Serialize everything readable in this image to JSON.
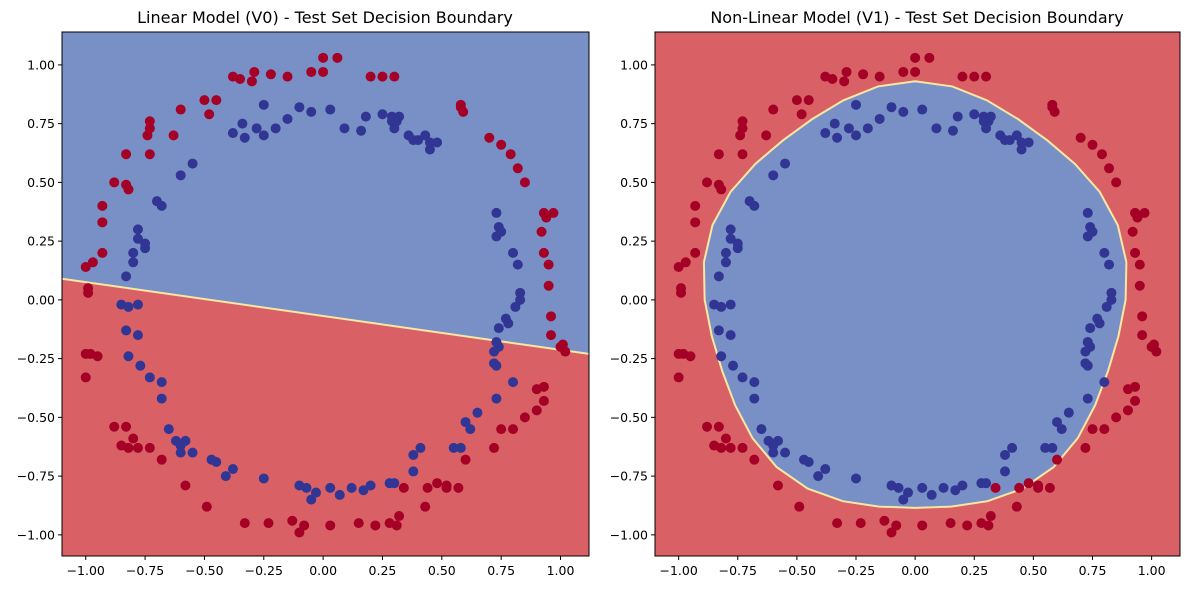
{
  "chart_data": [
    {
      "type": "scatter",
      "title": "Linear Model (V0) - Test Set Decision Boundary",
      "xlabel": "",
      "ylabel": "",
      "xlim": [
        -1.1,
        1.12
      ],
      "ylim": [
        -1.09,
        1.14
      ],
      "xticks": [
        -1.0,
        -0.75,
        -0.5,
        -0.25,
        0.0,
        0.25,
        0.5,
        0.75,
        1.0
      ],
      "xtick_labels": [
        "−1.00",
        "−0.75",
        "−0.50",
        "−0.25",
        "0.00",
        "0.25",
        "0.50",
        "0.75",
        "1.00"
      ],
      "yticks": [
        -1.0,
        -0.75,
        -0.5,
        -0.25,
        0.0,
        0.25,
        0.5,
        0.75,
        1.0
      ],
      "ytick_labels": [
        "−1.00",
        "−0.75",
        "−0.50",
        "−0.25",
        "0.00",
        "0.25",
        "0.50",
        "0.75",
        "1.00"
      ],
      "boundary": {
        "kind": "linear",
        "line": [
          [
            -1.1,
            0.09
          ],
          [
            1.12,
            -0.23
          ]
        ]
      },
      "region_colors": {
        "class_0": "#d96165",
        "class_1": "#7890c5",
        "edge": "#f7e7a3"
      },
      "point_colors": {
        "class_0": "#a50026",
        "class_1": "#313695"
      },
      "grid": false,
      "legend": "none"
    },
    {
      "type": "scatter",
      "title": "Non-Linear Model (V1) - Test Set Decision Boundary",
      "xlabel": "",
      "ylabel": "",
      "xlim": [
        -1.1,
        1.12
      ],
      "ylim": [
        -1.09,
        1.14
      ],
      "xticks": [
        -1.0,
        -0.75,
        -0.5,
        -0.25,
        0.0,
        0.25,
        0.5,
        0.75,
        1.0
      ],
      "xtick_labels": [
        "−1.00",
        "−0.75",
        "−0.50",
        "−0.25",
        "0.00",
        "0.25",
        "0.50",
        "0.75",
        "1.00"
      ],
      "yticks": [
        -1.0,
        -0.75,
        -0.5,
        -0.25,
        0.0,
        0.25,
        0.5,
        0.75,
        1.0
      ],
      "ytick_labels": [
        "−1.00",
        "−0.75",
        "−0.50",
        "−0.25",
        "0.00",
        "0.25",
        "0.50",
        "0.75",
        "1.00"
      ],
      "boundary": {
        "kind": "circle",
        "center": [
          0.0,
          0.0
        ],
        "radius": 0.89
      },
      "region_colors": {
        "class_0": "#d96165",
        "class_1": "#7890c5",
        "edge": "#f7e7a3"
      },
      "point_colors": {
        "class_0": "#a50026",
        "class_1": "#313695"
      },
      "grid": false,
      "legend": "none"
    }
  ],
  "points": {
    "red": [
      [
        0.0,
        1.03
      ],
      [
        0.06,
        1.03
      ],
      [
        -0.05,
        0.97
      ],
      [
        0.0,
        0.97
      ],
      [
        -0.29,
        0.97
      ],
      [
        -0.22,
        0.96
      ],
      [
        -0.35,
        0.94
      ],
      [
        -0.38,
        0.95
      ],
      [
        -0.3,
        0.93
      ],
      [
        -0.15,
        0.95
      ],
      [
        0.2,
        0.95
      ],
      [
        0.25,
        0.95
      ],
      [
        0.3,
        0.95
      ],
      [
        -0.45,
        0.85
      ],
      [
        -0.5,
        0.85
      ],
      [
        -0.6,
        0.81
      ],
      [
        -0.73,
        0.76
      ],
      [
        -0.73,
        0.73
      ],
      [
        -0.48,
        0.79
      ],
      [
        -0.63,
        0.7
      ],
      [
        0.58,
        0.83
      ],
      [
        0.58,
        0.82
      ],
      [
        0.59,
        0.8
      ],
      [
        0.7,
        0.69
      ],
      [
        0.75,
        0.66
      ],
      [
        -0.83,
        0.62
      ],
      [
        -0.73,
        0.62
      ],
      [
        -0.74,
        0.7
      ],
      [
        -0.88,
        0.5
      ],
      [
        -0.83,
        0.49
      ],
      [
        -0.82,
        0.47
      ],
      [
        0.79,
        0.62
      ],
      [
        0.82,
        0.56
      ],
      [
        0.85,
        0.5
      ],
      [
        -0.93,
        0.4
      ],
      [
        -0.93,
        0.33
      ],
      [
        -0.93,
        0.2
      ],
      [
        -1.0,
        0.14
      ],
      [
        -0.97,
        0.16
      ],
      [
        0.93,
        0.37
      ],
      [
        0.97,
        0.37
      ],
      [
        0.94,
        0.35
      ],
      [
        0.92,
        0.29
      ],
      [
        0.93,
        0.2
      ],
      [
        0.95,
        0.15
      ],
      [
        0.95,
        0.06
      ],
      [
        -0.99,
        0.05
      ],
      [
        -0.99,
        0.03
      ],
      [
        -1.0,
        -0.23
      ],
      [
        -1.0,
        -0.33
      ],
      [
        -0.98,
        -0.23
      ],
      [
        -0.95,
        -0.24
      ],
      [
        0.96,
        -0.07
      ],
      [
        0.96,
        -0.15
      ],
      [
        1.0,
        -0.2
      ],
      [
        1.02,
        -0.22
      ],
      [
        1.01,
        -0.19
      ],
      [
        0.93,
        -0.37
      ],
      [
        0.9,
        -0.38
      ],
      [
        0.93,
        -0.43
      ],
      [
        0.9,
        -0.47
      ],
      [
        0.85,
        -0.5
      ],
      [
        0.8,
        -0.55
      ],
      [
        0.75,
        -0.55
      ],
      [
        0.72,
        -0.63
      ],
      [
        0.6,
        -0.68
      ],
      [
        0.57,
        -0.8
      ],
      [
        0.52,
        -0.79
      ],
      [
        -0.88,
        -0.54
      ],
      [
        -0.83,
        -0.54
      ],
      [
        -0.8,
        -0.59
      ],
      [
        -0.82,
        -0.63
      ],
      [
        -0.85,
        -0.62
      ],
      [
        -0.78,
        -0.63
      ],
      [
        -0.73,
        -0.63
      ],
      [
        -0.68,
        -0.68
      ],
      [
        -0.58,
        -0.79
      ],
      [
        -0.49,
        -0.88
      ],
      [
        -0.33,
        -0.95
      ],
      [
        -0.23,
        -0.95
      ],
      [
        -0.13,
        -0.94
      ],
      [
        -0.1,
        -0.99
      ],
      [
        -0.08,
        -0.96
      ],
      [
        0.03,
        -0.96
      ],
      [
        0.15,
        -0.95
      ],
      [
        0.22,
        -0.96
      ],
      [
        0.28,
        -0.95
      ],
      [
        0.31,
        -0.96
      ],
      [
        0.32,
        -0.92
      ],
      [
        0.43,
        -0.88
      ],
      [
        0.34,
        -0.8
      ],
      [
        0.48,
        -0.78
      ],
      [
        0.52,
        -0.8
      ],
      [
        0.44,
        -0.8
      ]
    ],
    "blue": [
      [
        -0.1,
        0.82
      ],
      [
        -0.05,
        0.8
      ],
      [
        0.03,
        0.81
      ],
      [
        0.09,
        0.73
      ],
      [
        0.16,
        0.72
      ],
      [
        0.18,
        0.78
      ],
      [
        0.25,
        0.79
      ],
      [
        0.29,
        0.76
      ],
      [
        0.29,
        0.78
      ],
      [
        0.3,
        0.75
      ],
      [
        0.3,
        0.73
      ],
      [
        0.31,
        0.76
      ],
      [
        0.32,
        0.78
      ],
      [
        -0.25,
        0.83
      ],
      [
        -0.34,
        0.75
      ],
      [
        -0.38,
        0.71
      ],
      [
        -0.28,
        0.73
      ],
      [
        -0.33,
        0.69
      ],
      [
        -0.2,
        0.73
      ],
      [
        -0.15,
        0.77
      ],
      [
        -0.25,
        0.7
      ],
      [
        0.36,
        0.7
      ],
      [
        0.38,
        0.68
      ],
      [
        0.4,
        0.68
      ],
      [
        0.43,
        0.7
      ],
      [
        0.45,
        0.67
      ],
      [
        0.48,
        0.67
      ],
      [
        0.45,
        0.64
      ],
      [
        -0.55,
        0.58
      ],
      [
        -0.6,
        0.53
      ],
      [
        -0.68,
        0.4
      ],
      [
        -0.7,
        0.42
      ],
      [
        -0.78,
        0.3
      ],
      [
        -0.78,
        0.26
      ],
      [
        -0.75,
        0.22
      ],
      [
        -0.8,
        0.2
      ],
      [
        -0.8,
        0.16
      ],
      [
        -0.83,
        0.1
      ],
      [
        -0.75,
        0.24
      ],
      [
        0.73,
        0.37
      ],
      [
        0.74,
        0.31
      ],
      [
        0.75,
        0.29
      ],
      [
        0.73,
        0.27
      ],
      [
        0.8,
        0.2
      ],
      [
        0.82,
        0.15
      ],
      [
        0.83,
        0.03
      ],
      [
        0.83,
        0.0
      ],
      [
        0.81,
        -0.03
      ],
      [
        -0.85,
        -0.02
      ],
      [
        -0.82,
        -0.03
      ],
      [
        -0.78,
        -0.02
      ],
      [
        -0.83,
        -0.13
      ],
      [
        -0.78,
        -0.15
      ],
      [
        -0.82,
        -0.24
      ],
      [
        -0.77,
        -0.28
      ],
      [
        -0.73,
        -0.33
      ],
      [
        -0.68,
        -0.35
      ],
      [
        -0.68,
        -0.42
      ],
      [
        0.77,
        -0.08
      ],
      [
        0.74,
        -0.12
      ],
      [
        0.78,
        -0.1
      ],
      [
        0.73,
        -0.18
      ],
      [
        0.74,
        -0.2
      ],
      [
        0.73,
        -0.18
      ],
      [
        0.72,
        -0.22
      ],
      [
        0.73,
        -0.28
      ],
      [
        0.72,
        -0.27
      ],
      [
        0.8,
        -0.35
      ],
      [
        0.73,
        -0.42
      ],
      [
        0.65,
        -0.48
      ],
      [
        0.6,
        -0.52
      ],
      [
        0.62,
        -0.55
      ],
      [
        0.55,
        -0.63
      ],
      [
        0.58,
        -0.63
      ],
      [
        0.41,
        -0.63
      ],
      [
        0.38,
        -0.66
      ],
      [
        0.38,
        -0.73
      ],
      [
        -0.65,
        -0.55
      ],
      [
        -0.62,
        -0.6
      ],
      [
        -0.6,
        -0.62
      ],
      [
        -0.6,
        -0.65
      ],
      [
        -0.58,
        -0.6
      ],
      [
        -0.55,
        -0.65
      ],
      [
        -0.47,
        -0.68
      ],
      [
        -0.45,
        -0.69
      ],
      [
        -0.41,
        -0.75
      ],
      [
        -0.38,
        -0.72
      ],
      [
        -0.25,
        -0.76
      ],
      [
        -0.1,
        -0.79
      ],
      [
        -0.07,
        -0.8
      ],
      [
        -0.05,
        -0.85
      ],
      [
        -0.03,
        -0.82
      ],
      [
        0.03,
        -0.8
      ],
      [
        0.07,
        -0.83
      ],
      [
        0.12,
        -0.8
      ],
      [
        0.17,
        -0.81
      ],
      [
        0.2,
        -0.79
      ],
      [
        0.28,
        -0.78
      ],
      [
        0.3,
        -0.78
      ]
    ]
  }
}
